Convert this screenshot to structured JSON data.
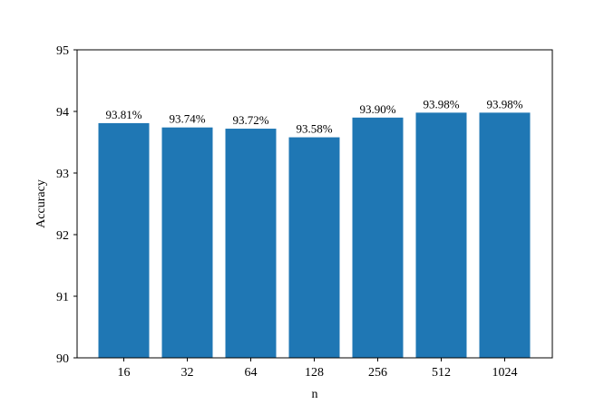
{
  "chart_data": {
    "type": "bar",
    "categories": [
      "16",
      "32",
      "64",
      "128",
      "256",
      "512",
      "1024"
    ],
    "values": [
      93.81,
      93.74,
      93.72,
      93.58,
      93.9,
      93.98,
      93.98
    ],
    "data_labels": [
      "93.81%",
      "93.74%",
      "93.72%",
      "93.58%",
      "93.90%",
      "93.98%",
      "93.98%"
    ],
    "title": "",
    "xlabel": "n",
    "ylabel": "Accuracy",
    "ylim": [
      90,
      95
    ],
    "yticks": [
      "90",
      "91",
      "92",
      "93",
      "94",
      "95"
    ],
    "grid": false,
    "bar_color": "#1f77b4"
  }
}
